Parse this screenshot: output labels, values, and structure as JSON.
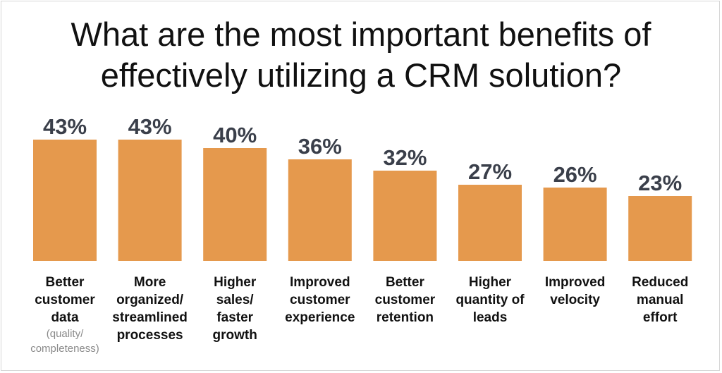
{
  "chart_data": {
    "type": "bar",
    "title": "What are the most important benefits of\neffectively utilizing a CRM solution?",
    "categories": [
      "Better\ncustomer\ndata",
      "More\norganized/\nstreamlined\nprocesses",
      "Higher\nsales/\nfaster\ngrowth",
      "Improved\ncustomer\nexperience",
      "Better\ncustomer\nretention",
      "Higher\nquantity of\nleads",
      "Improved\nvelocity",
      "Reduced\nmanual\neffort"
    ],
    "category_notes": [
      "(quality/\ncompleteness)",
      "",
      "",
      "",
      "",
      "",
      "",
      ""
    ],
    "values": [
      43,
      43,
      40,
      36,
      32,
      27,
      26,
      23
    ],
    "data_labels": [
      "43%",
      "43%",
      "40%",
      "36%",
      "32%",
      "27%",
      "26%",
      "23%"
    ],
    "unit": "%",
    "bar_color": "#E5994D",
    "label_color": "#3a3f4a",
    "grid": false,
    "legend": "none"
  }
}
